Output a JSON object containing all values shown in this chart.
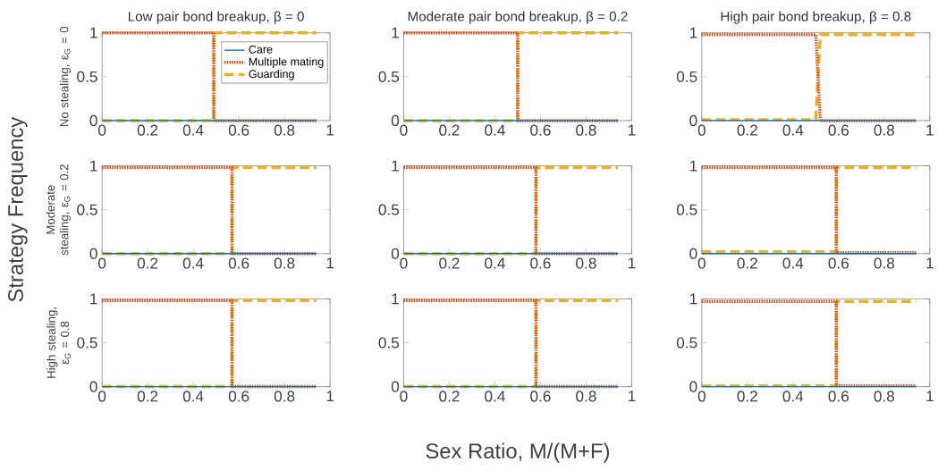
{
  "chart_data": [
    {
      "type": "line",
      "title": "Low pair bond breakup, β = 0",
      "ylabel": "No stealing, ε$_{G}$ = 0",
      "legend": "top right",
      "xlim": [
        0,
        1
      ],
      "ylim": [
        0,
        1
      ],
      "xticks": [
        0,
        0.2,
        0.4,
        0.6,
        0.8,
        1
      ],
      "yticks": [
        0,
        0.5,
        1
      ],
      "series": [
        {
          "name": "Care",
          "color": "#0072bd",
          "line_style": "solid",
          "x": [
            0,
            0.94
          ],
          "values": [
            0,
            0
          ]
        },
        {
          "name": "Multiple mating",
          "color": "#d95319",
          "line_style": "dotted",
          "x": [
            0,
            0.49,
            0.49,
            0.94
          ],
          "values": [
            1,
            1,
            0,
            0
          ]
        },
        {
          "name": "Guarding",
          "color": "#edb120",
          "line_style": "dashed",
          "x": [
            0,
            0.49,
            0.49,
            0.94
          ],
          "values": [
            0,
            0,
            1,
            1
          ]
        }
      ]
    },
    {
      "type": "line",
      "title": "Moderate pair bond breakup, β = 0.2",
      "xlim": [
        0,
        1
      ],
      "ylim": [
        0,
        1
      ],
      "xticks": [
        0,
        0.2,
        0.4,
        0.6,
        0.8,
        1
      ],
      "yticks": [
        0,
        0.5,
        1
      ],
      "series": [
        {
          "color": "#0072bd",
          "line_style": "solid",
          "x": [
            0,
            0.94
          ],
          "values": [
            0,
            0
          ]
        },
        {
          "color": "#d95319",
          "line_style": "dotted",
          "x": [
            0,
            0.5,
            0.5,
            0.94
          ],
          "values": [
            1,
            1,
            0,
            0
          ]
        },
        {
          "color": "#edb120",
          "line_style": "dashed",
          "x": [
            0,
            0.5,
            0.5,
            0.94
          ],
          "values": [
            0,
            0,
            1,
            1
          ]
        }
      ]
    },
    {
      "type": "line",
      "title": "High pair bond breakup, β = 0.8",
      "xlim": [
        0,
        1
      ],
      "ylim": [
        0,
        1
      ],
      "xticks": [
        0,
        0.2,
        0.4,
        0.6,
        0.8,
        1
      ],
      "yticks": [
        0,
        0.5,
        1
      ],
      "series": [
        {
          "color": "#0072bd",
          "line_style": "solid",
          "x": [
            0,
            0.94
          ],
          "values": [
            0,
            0
          ]
        },
        {
          "color": "#d95319",
          "line_style": "dotted",
          "x": [
            0,
            0.5,
            0.52,
            0.94
          ],
          "values": [
            0.98,
            0.98,
            0,
            0
          ]
        },
        {
          "color": "#edb120",
          "line_style": "dashed",
          "x": [
            0,
            0.5,
            0.52,
            0.94
          ],
          "values": [
            0.01,
            0.01,
            0.98,
            0.98
          ]
        }
      ]
    },
    {
      "type": "line",
      "ylabel": "Moderate stealing, ε$_{G}$ = 0.2",
      "annotations": [
        "Strategy Frequency"
      ],
      "xlim": [
        0,
        1
      ],
      "ylim": [
        0,
        1
      ],
      "xticks": [
        0,
        0.2,
        0.4,
        0.6,
        0.8,
        1
      ],
      "yticks": [
        0,
        0.5,
        1
      ],
      "series": [
        {
          "color": "#0072bd",
          "line_style": "solid",
          "x": [
            0,
            0.94
          ],
          "values": [
            0,
            0
          ]
        },
        {
          "color": "#d95319",
          "line_style": "dotted",
          "x": [
            0,
            0.57,
            0.57,
            0.94
          ],
          "values": [
            0.98,
            0.98,
            0,
            0
          ]
        },
        {
          "color": "#edb120",
          "line_style": "dashed",
          "x": [
            0,
            0.57,
            0.57,
            0.94
          ],
          "values": [
            0,
            0,
            0.98,
            0.98
          ]
        }
      ]
    },
    {
      "type": "line",
      "xlim": [
        0,
        1
      ],
      "ylim": [
        0,
        1
      ],
      "xticks": [
        0,
        0.2,
        0.4,
        0.6,
        0.8,
        1
      ],
      "yticks": [
        0,
        0.5,
        1
      ],
      "series": [
        {
          "color": "#0072bd",
          "line_style": "solid",
          "x": [
            0,
            0.94
          ],
          "values": [
            0,
            0
          ]
        },
        {
          "color": "#d95319",
          "line_style": "dotted",
          "x": [
            0,
            0.58,
            0.58,
            0.94
          ],
          "values": [
            0.98,
            0.98,
            0,
            0
          ]
        },
        {
          "color": "#edb120",
          "line_style": "dashed",
          "x": [
            0,
            0.58,
            0.58,
            0.94
          ],
          "values": [
            0,
            0,
            0.98,
            0.98
          ]
        }
      ]
    },
    {
      "type": "line",
      "xlim": [
        0,
        1
      ],
      "ylim": [
        0,
        1
      ],
      "xticks": [
        0,
        0.2,
        0.4,
        0.6,
        0.8,
        1
      ],
      "yticks": [
        0,
        0.5,
        1
      ],
      "series": [
        {
          "color": "#0072bd",
          "line_style": "solid",
          "x": [
            0,
            0.94
          ],
          "values": [
            0,
            0
          ]
        },
        {
          "color": "#d95319",
          "line_style": "dotted",
          "x": [
            0,
            0.59,
            0.59,
            0.94
          ],
          "values": [
            0.98,
            0.98,
            0.01,
            0.01
          ]
        },
        {
          "color": "#edb120",
          "line_style": "dashed",
          "x": [
            0,
            0.59,
            0.59,
            0.94
          ],
          "values": [
            0.02,
            0.02,
            0.98,
            0.98
          ]
        }
      ]
    },
    {
      "type": "line",
      "ylabel": "High stealing, ε$_{G}$ = 0.8",
      "xlim": [
        0,
        1
      ],
      "ylim": [
        0,
        1
      ],
      "xticks": [
        0,
        0.2,
        0.4,
        0.6,
        0.8,
        1
      ],
      "yticks": [
        0,
        0.5,
        1
      ],
      "series": [
        {
          "color": "#0072bd",
          "line_style": "solid",
          "x": [
            0,
            0.94
          ],
          "values": [
            0,
            0
          ]
        },
        {
          "color": "#d95319",
          "line_style": "dotted",
          "x": [
            0,
            0.57,
            0.57,
            0.94
          ],
          "values": [
            0.98,
            0.98,
            0,
            0
          ]
        },
        {
          "color": "#edb120",
          "line_style": "dashed",
          "x": [
            0,
            0.57,
            0.57,
            0.94
          ],
          "values": [
            0,
            0,
            0.98,
            0.98
          ]
        }
      ]
    },
    {
      "type": "line",
      "xlabel": "Sex Ratio, M/(M+F)",
      "xlim": [
        0,
        1
      ],
      "ylim": [
        0,
        1
      ],
      "xticks": [
        0,
        0.2,
        0.4,
        0.6,
        0.8,
        1
      ],
      "yticks": [
        0,
        0.5,
        1
      ],
      "series": [
        {
          "color": "#0072bd",
          "line_style": "solid",
          "x": [
            0,
            0.94
          ],
          "values": [
            0,
            0
          ]
        },
        {
          "color": "#d95319",
          "line_style": "dotted",
          "x": [
            0,
            0.58,
            0.58,
            0.94
          ],
          "values": [
            0.98,
            0.98,
            0,
            0
          ]
        },
        {
          "color": "#edb120",
          "line_style": "dashed",
          "x": [
            0,
            0.58,
            0.58,
            0.94
          ],
          "values": [
            0,
            0,
            0.98,
            0.98
          ]
        }
      ]
    },
    {
      "type": "line",
      "xlim": [
        0,
        1
      ],
      "ylim": [
        0,
        1
      ],
      "xticks": [
        0,
        0.2,
        0.4,
        0.6,
        0.8,
        1
      ],
      "yticks": [
        0,
        0.5,
        1
      ],
      "series": [
        {
          "color": "#0072bd",
          "line_style": "solid",
          "x": [
            0,
            0.94
          ],
          "values": [
            0,
            0
          ]
        },
        {
          "color": "#d95319",
          "line_style": "dotted",
          "x": [
            0,
            0.59,
            0.59,
            0.94
          ],
          "values": [
            0.97,
            0.97,
            0.01,
            0.01
          ]
        },
        {
          "color": "#edb120",
          "line_style": "dashed",
          "x": [
            0,
            0.59,
            0.59,
            0.94
          ],
          "values": [
            0.01,
            0.01,
            0.97,
            0.97
          ]
        }
      ]
    }
  ]
}
